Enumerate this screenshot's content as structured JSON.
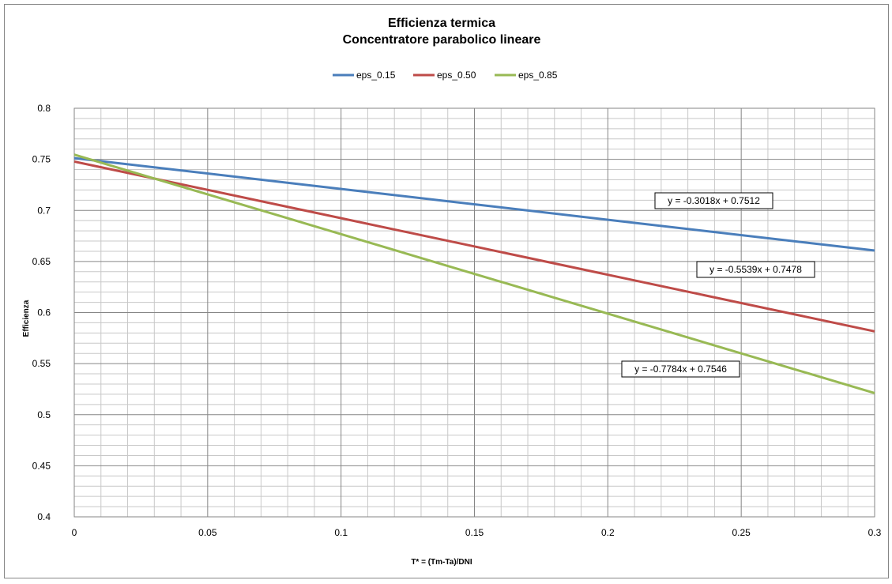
{
  "chart_data": {
    "type": "line",
    "title": "Efficienza termica",
    "subtitle": "Concentratore parabolico lineare",
    "xlabel": "T* = (Tm-Ta)/DNI",
    "ylabel": "Efficienza",
    "xlim": [
      0,
      0.3
    ],
    "ylim": [
      0.4,
      0.8
    ],
    "x_ticks": [
      "0",
      "0.05",
      "0.1",
      "0.15",
      "0.2",
      "0.25",
      "0.3"
    ],
    "y_ticks": [
      "0.4",
      "0.45",
      "0.5",
      "0.55",
      "0.6",
      "0.65",
      "0.7",
      "0.75",
      "0.8"
    ],
    "grid": true,
    "legend_position": "top",
    "series": [
      {
        "name": "eps_0.15",
        "color": "#4a7ebb",
        "x": [
          0,
          0.3
        ],
        "y": [
          0.7512,
          0.6607
        ],
        "equation": "y = -0.3018x + 0.7512"
      },
      {
        "name": "eps_0.50",
        "color": "#be4b48",
        "x": [
          0,
          0.3
        ],
        "y": [
          0.7478,
          0.5816
        ],
        "equation": "y = -0.5539x + 0.7478"
      },
      {
        "name": "eps_0.85",
        "color": "#98b954",
        "x": [
          0,
          0.3
        ],
        "y": [
          0.7546,
          0.5211
        ],
        "equation": "y = -0.7784x + 0.7546"
      }
    ]
  }
}
